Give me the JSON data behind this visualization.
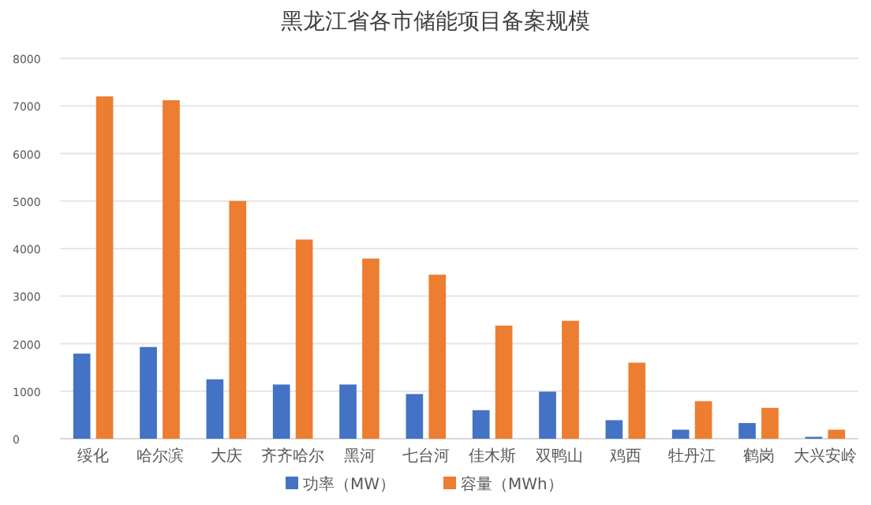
{
  "chart_data": {
    "type": "bar",
    "title": "黑龙江省各市储能项目备案规模",
    "categories": [
      "绥化",
      "哈尔滨",
      "大庆",
      "齐齐哈尔",
      "黑河",
      "七台河",
      "佳木斯",
      "双鸭山",
      "鸡西",
      "牡丹江",
      "鹤岗",
      "大兴安岭"
    ],
    "series": [
      {
        "name": "功率（MW）",
        "color": "#4472c4",
        "values": [
          1790,
          1930,
          1250,
          1140,
          1140,
          940,
          600,
          990,
          390,
          190,
          330,
          40
        ]
      },
      {
        "name": "容量（MWh）",
        "color": "#ed7d31",
        "values": [
          7200,
          7120,
          5000,
          4190,
          3790,
          3450,
          2380,
          2480,
          1600,
          790,
          650,
          190
        ]
      }
    ],
    "ylim": [
      0,
      8000
    ],
    "yticks": [
      0,
      1000,
      2000,
      3000,
      4000,
      5000,
      6000,
      7000,
      8000
    ],
    "grid": "y",
    "legend": "bottom"
  }
}
